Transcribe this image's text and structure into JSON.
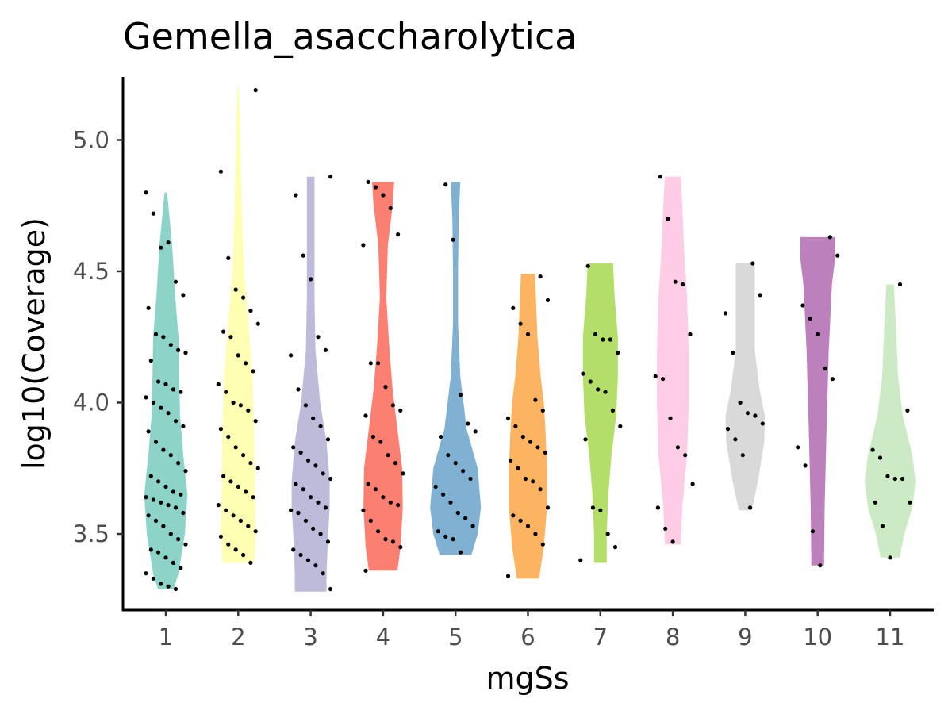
{
  "chart_data": {
    "type": "violin",
    "title": "Gemella_asaccharolytica",
    "xlabel": "mgSs",
    "ylabel": "log10(Coverage)",
    "categories": [
      "1",
      "2",
      "3",
      "4",
      "5",
      "6",
      "7",
      "8",
      "9",
      "10",
      "11"
    ],
    "ylim": [
      3.21,
      5.24
    ],
    "yticks": [
      "3.5",
      "4.0",
      "4.5",
      "5.0"
    ],
    "grid": false,
    "legend": "none",
    "colors": [
      "#8dd3c7",
      "#ffffb3",
      "#bebada",
      "#fb8072",
      "#80b1d3",
      "#fdb462",
      "#b3de69",
      "#fccde5",
      "#d9d9d9",
      "#bc80bd",
      "#ccebc5"
    ],
    "violins": [
      {
        "category": "1",
        "min": 3.29,
        "max": 4.8,
        "profile": [
          [
            3.29,
            0.25
          ],
          [
            3.35,
            0.4
          ],
          [
            3.5,
            0.6
          ],
          [
            3.65,
            0.68
          ],
          [
            3.8,
            0.55
          ],
          [
            3.95,
            0.45
          ],
          [
            4.1,
            0.42
          ],
          [
            4.25,
            0.4
          ],
          [
            4.4,
            0.3
          ],
          [
            4.6,
            0.2
          ],
          [
            4.8,
            0.04
          ]
        ]
      },
      {
        "category": "2",
        "min": 3.39,
        "max": 5.2,
        "profile": [
          [
            3.39,
            0.5
          ],
          [
            3.5,
            0.55
          ],
          [
            3.7,
            0.52
          ],
          [
            3.9,
            0.5
          ],
          [
            4.1,
            0.45
          ],
          [
            4.3,
            0.32
          ],
          [
            4.5,
            0.18
          ],
          [
            4.7,
            0.12
          ],
          [
            4.9,
            0.08
          ],
          [
            5.1,
            0.05
          ],
          [
            5.2,
            0.02
          ]
        ]
      },
      {
        "category": "3",
        "min": 3.28,
        "max": 4.86,
        "profile": [
          [
            3.28,
            0.5
          ],
          [
            3.35,
            0.5
          ],
          [
            3.5,
            0.55
          ],
          [
            3.6,
            0.6
          ],
          [
            3.7,
            0.6
          ],
          [
            3.85,
            0.5
          ],
          [
            4.0,
            0.3
          ],
          [
            4.2,
            0.15
          ],
          [
            4.4,
            0.12
          ],
          [
            4.6,
            0.12
          ],
          [
            4.86,
            0.12
          ]
        ]
      },
      {
        "category": "4",
        "min": 3.36,
        "max": 4.84,
        "profile": [
          [
            3.36,
            0.45
          ],
          [
            3.45,
            0.55
          ],
          [
            3.6,
            0.62
          ],
          [
            3.75,
            0.6
          ],
          [
            3.9,
            0.45
          ],
          [
            4.05,
            0.3
          ],
          [
            4.2,
            0.2
          ],
          [
            4.4,
            0.1
          ],
          [
            4.6,
            0.15
          ],
          [
            4.75,
            0.3
          ],
          [
            4.84,
            0.35
          ]
        ]
      },
      {
        "category": "5",
        "min": 3.42,
        "max": 4.84,
        "profile": [
          [
            3.42,
            0.5
          ],
          [
            3.5,
            0.7
          ],
          [
            3.6,
            0.8
          ],
          [
            3.75,
            0.7
          ],
          [
            3.9,
            0.35
          ],
          [
            4.1,
            0.15
          ],
          [
            4.3,
            0.08
          ],
          [
            4.5,
            0.08
          ],
          [
            4.7,
            0.1
          ],
          [
            4.84,
            0.15
          ]
        ]
      },
      {
        "category": "6",
        "min": 3.33,
        "max": 4.49,
        "profile": [
          [
            3.33,
            0.35
          ],
          [
            3.45,
            0.5
          ],
          [
            3.6,
            0.6
          ],
          [
            3.75,
            0.6
          ],
          [
            3.9,
            0.55
          ],
          [
            4.0,
            0.5
          ],
          [
            4.1,
            0.4
          ],
          [
            4.25,
            0.3
          ],
          [
            4.4,
            0.25
          ],
          [
            4.49,
            0.22
          ]
        ]
      },
      {
        "category": "7",
        "min": 3.39,
        "max": 4.53,
        "profile": [
          [
            3.39,
            0.2
          ],
          [
            3.5,
            0.2
          ],
          [
            3.65,
            0.25
          ],
          [
            3.8,
            0.35
          ],
          [
            3.95,
            0.5
          ],
          [
            4.1,
            0.55
          ],
          [
            4.25,
            0.55
          ],
          [
            4.4,
            0.45
          ],
          [
            4.53,
            0.4
          ]
        ]
      },
      {
        "category": "8",
        "min": 3.46,
        "max": 4.86,
        "profile": [
          [
            3.46,
            0.25
          ],
          [
            3.6,
            0.3
          ],
          [
            3.8,
            0.45
          ],
          [
            4.0,
            0.5
          ],
          [
            4.2,
            0.5
          ],
          [
            4.4,
            0.45
          ],
          [
            4.6,
            0.35
          ],
          [
            4.75,
            0.3
          ],
          [
            4.86,
            0.25
          ]
        ]
      },
      {
        "category": "9",
        "min": 3.59,
        "max": 4.53,
        "profile": [
          [
            3.59,
            0.2
          ],
          [
            3.7,
            0.4
          ],
          [
            3.85,
            0.6
          ],
          [
            3.95,
            0.62
          ],
          [
            4.05,
            0.45
          ],
          [
            4.2,
            0.3
          ],
          [
            4.35,
            0.3
          ],
          [
            4.45,
            0.3
          ],
          [
            4.53,
            0.3
          ]
        ]
      },
      {
        "category": "10",
        "min": 3.38,
        "max": 4.63,
        "profile": [
          [
            3.38,
            0.2
          ],
          [
            3.6,
            0.22
          ],
          [
            3.9,
            0.28
          ],
          [
            4.2,
            0.35
          ],
          [
            4.45,
            0.45
          ],
          [
            4.55,
            0.55
          ],
          [
            4.63,
            0.55
          ]
        ]
      },
      {
        "category": "11",
        "min": 3.41,
        "max": 4.45,
        "profile": [
          [
            3.41,
            0.3
          ],
          [
            3.5,
            0.45
          ],
          [
            3.6,
            0.7
          ],
          [
            3.7,
            0.8
          ],
          [
            3.8,
            0.7
          ],
          [
            3.95,
            0.4
          ],
          [
            4.1,
            0.25
          ],
          [
            4.3,
            0.18
          ],
          [
            4.45,
            0.12
          ]
        ]
      }
    ],
    "points": [
      [
        1,
        4.8
      ],
      [
        1,
        4.72
      ],
      [
        1,
        4.59
      ],
      [
        1,
        4.61
      ],
      [
        1,
        4.46
      ],
      [
        1,
        4.41
      ],
      [
        1,
        4.36
      ],
      [
        1,
        4.26
      ],
      [
        1,
        4.25
      ],
      [
        1,
        4.22
      ],
      [
        1,
        4.2
      ],
      [
        1,
        4.19
      ],
      [
        1,
        4.16
      ],
      [
        1,
        4.08
      ],
      [
        1,
        4.07
      ],
      [
        1,
        4.05
      ],
      [
        1,
        4.04
      ],
      [
        1,
        4.02
      ],
      [
        1,
        4.0
      ],
      [
        1,
        3.98
      ],
      [
        1,
        3.96
      ],
      [
        1,
        3.93
      ],
      [
        1,
        3.91
      ],
      [
        1,
        3.89
      ],
      [
        1,
        3.85
      ],
      [
        1,
        3.82
      ],
      [
        1,
        3.8
      ],
      [
        1,
        3.77
      ],
      [
        1,
        3.74
      ],
      [
        1,
        3.72
      ],
      [
        1,
        3.7
      ],
      [
        1,
        3.68
      ],
      [
        1,
        3.66
      ],
      [
        1,
        3.65
      ],
      [
        1,
        3.64
      ],
      [
        1,
        3.63
      ],
      [
        1,
        3.62
      ],
      [
        1,
        3.61
      ],
      [
        1,
        3.6
      ],
      [
        1,
        3.58
      ],
      [
        1,
        3.57
      ],
      [
        1,
        3.55
      ],
      [
        1,
        3.53
      ],
      [
        1,
        3.5
      ],
      [
        1,
        3.48
      ],
      [
        1,
        3.46
      ],
      [
        1,
        3.44
      ],
      [
        1,
        3.43
      ],
      [
        1,
        3.41
      ],
      [
        1,
        3.39
      ],
      [
        1,
        3.37
      ],
      [
        1,
        3.35
      ],
      [
        1,
        3.33
      ],
      [
        1,
        3.31
      ],
      [
        1,
        3.3
      ],
      [
        1,
        3.29
      ],
      [
        2,
        5.19
      ],
      [
        2,
        4.88
      ],
      [
        2,
        4.55
      ],
      [
        2,
        4.43
      ],
      [
        2,
        4.4
      ],
      [
        2,
        4.35
      ],
      [
        2,
        4.3
      ],
      [
        2,
        4.27
      ],
      [
        2,
        4.25
      ],
      [
        2,
        4.18
      ],
      [
        2,
        4.15
      ],
      [
        2,
        4.12
      ],
      [
        2,
        4.07
      ],
      [
        2,
        4.04
      ],
      [
        2,
        4.0
      ],
      [
        2,
        3.99
      ],
      [
        2,
        3.97
      ],
      [
        2,
        3.93
      ],
      [
        2,
        3.9
      ],
      [
        2,
        3.87
      ],
      [
        2,
        3.83
      ],
      [
        2,
        3.8
      ],
      [
        2,
        3.77
      ],
      [
        2,
        3.75
      ],
      [
        2,
        3.72
      ],
      [
        2,
        3.7
      ],
      [
        2,
        3.68
      ],
      [
        2,
        3.66
      ],
      [
        2,
        3.64
      ],
      [
        2,
        3.61
      ],
      [
        2,
        3.59
      ],
      [
        2,
        3.57
      ],
      [
        2,
        3.55
      ],
      [
        2,
        3.53
      ],
      [
        2,
        3.51
      ],
      [
        2,
        3.49
      ],
      [
        2,
        3.46
      ],
      [
        2,
        3.44
      ],
      [
        2,
        3.42
      ],
      [
        2,
        3.39
      ],
      [
        3,
        4.86
      ],
      [
        3,
        4.79
      ],
      [
        3,
        4.56
      ],
      [
        3,
        4.47
      ],
      [
        3,
        4.25
      ],
      [
        3,
        4.2
      ],
      [
        3,
        4.18
      ],
      [
        3,
        4.05
      ],
      [
        3,
        3.99
      ],
      [
        3,
        3.94
      ],
      [
        3,
        3.91
      ],
      [
        3,
        3.86
      ],
      [
        3,
        3.83
      ],
      [
        3,
        3.81
      ],
      [
        3,
        3.78
      ],
      [
        3,
        3.76
      ],
      [
        3,
        3.73
      ],
      [
        3,
        3.71
      ],
      [
        3,
        3.69
      ],
      [
        3,
        3.67
      ],
      [
        3,
        3.64
      ],
      [
        3,
        3.62
      ],
      [
        3,
        3.6
      ],
      [
        3,
        3.59
      ],
      [
        3,
        3.58
      ],
      [
        3,
        3.55
      ],
      [
        3,
        3.52
      ],
      [
        3,
        3.5
      ],
      [
        3,
        3.47
      ],
      [
        3,
        3.44
      ],
      [
        3,
        3.42
      ],
      [
        3,
        3.4
      ],
      [
        3,
        3.38
      ],
      [
        3,
        3.35
      ],
      [
        3,
        3.29
      ],
      [
        4,
        4.84
      ],
      [
        4,
        4.82
      ],
      [
        4,
        4.79
      ],
      [
        4,
        4.74
      ],
      [
        4,
        4.64
      ],
      [
        4,
        4.6
      ],
      [
        4,
        4.15
      ],
      [
        4,
        4.15
      ],
      [
        4,
        4.06
      ],
      [
        4,
        3.99
      ],
      [
        4,
        3.97
      ],
      [
        4,
        3.95
      ],
      [
        4,
        3.87
      ],
      [
        4,
        3.85
      ],
      [
        4,
        3.8
      ],
      [
        4,
        3.77
      ],
      [
        4,
        3.73
      ],
      [
        4,
        3.69
      ],
      [
        4,
        3.67
      ],
      [
        4,
        3.64
      ],
      [
        4,
        3.62
      ],
      [
        4,
        3.61
      ],
      [
        4,
        3.59
      ],
      [
        4,
        3.55
      ],
      [
        4,
        3.51
      ],
      [
        4,
        3.48
      ],
      [
        4,
        3.47
      ],
      [
        4,
        3.45
      ],
      [
        4,
        3.36
      ],
      [
        5,
        4.83
      ],
      [
        5,
        4.62
      ],
      [
        5,
        4.03
      ],
      [
        5,
        3.92
      ],
      [
        5,
        3.89
      ],
      [
        5,
        3.87
      ],
      [
        5,
        3.8
      ],
      [
        5,
        3.77
      ],
      [
        5,
        3.74
      ],
      [
        5,
        3.71
      ],
      [
        5,
        3.68
      ],
      [
        5,
        3.65
      ],
      [
        5,
        3.62
      ],
      [
        5,
        3.58
      ],
      [
        5,
        3.56
      ],
      [
        5,
        3.53
      ],
      [
        5,
        3.51
      ],
      [
        5,
        3.49
      ],
      [
        5,
        3.48
      ],
      [
        5,
        3.43
      ],
      [
        6,
        4.48
      ],
      [
        6,
        4.39
      ],
      [
        6,
        4.36
      ],
      [
        6,
        4.3
      ],
      [
        6,
        4.26
      ],
      [
        6,
        4.01
      ],
      [
        6,
        3.97
      ],
      [
        6,
        3.94
      ],
      [
        6,
        3.91
      ],
      [
        6,
        3.87
      ],
      [
        6,
        3.85
      ],
      [
        6,
        3.83
      ],
      [
        6,
        3.81
      ],
      [
        6,
        3.78
      ],
      [
        6,
        3.75
      ],
      [
        6,
        3.71
      ],
      [
        6,
        3.7
      ],
      [
        6,
        3.67
      ],
      [
        6,
        3.6
      ],
      [
        6,
        3.57
      ],
      [
        6,
        3.55
      ],
      [
        6,
        3.53
      ],
      [
        6,
        3.5
      ],
      [
        6,
        3.46
      ],
      [
        6,
        3.34
      ],
      [
        7,
        4.52
      ],
      [
        7,
        4.26
      ],
      [
        7,
        4.24
      ],
      [
        7,
        4.24
      ],
      [
        7,
        4.19
      ],
      [
        7,
        4.11
      ],
      [
        7,
        4.08
      ],
      [
        7,
        4.05
      ],
      [
        7,
        4.04
      ],
      [
        7,
        3.97
      ],
      [
        7,
        3.91
      ],
      [
        7,
        3.86
      ],
      [
        7,
        3.6
      ],
      [
        7,
        3.59
      ],
      [
        7,
        3.5
      ],
      [
        7,
        3.45
      ],
      [
        7,
        3.4
      ],
      [
        8,
        4.86
      ],
      [
        8,
        4.7
      ],
      [
        8,
        4.46
      ],
      [
        8,
        4.45
      ],
      [
        8,
        4.26
      ],
      [
        8,
        4.1
      ],
      [
        8,
        4.09
      ],
      [
        8,
        3.94
      ],
      [
        8,
        3.83
      ],
      [
        8,
        3.8
      ],
      [
        8,
        3.69
      ],
      [
        8,
        3.6
      ],
      [
        8,
        3.52
      ],
      [
        8,
        3.47
      ],
      [
        9,
        4.53
      ],
      [
        9,
        4.41
      ],
      [
        9,
        4.34
      ],
      [
        9,
        4.19
      ],
      [
        9,
        4.0
      ],
      [
        9,
        3.96
      ],
      [
        9,
        3.95
      ],
      [
        9,
        3.92
      ],
      [
        9,
        3.9
      ],
      [
        9,
        3.86
      ],
      [
        9,
        3.8
      ],
      [
        9,
        3.6
      ],
      [
        10,
        4.63
      ],
      [
        10,
        4.56
      ],
      [
        10,
        4.37
      ],
      [
        10,
        4.32
      ],
      [
        10,
        4.26
      ],
      [
        10,
        4.13
      ],
      [
        10,
        4.09
      ],
      [
        10,
        3.83
      ],
      [
        10,
        3.76
      ],
      [
        10,
        3.51
      ],
      [
        10,
        3.38
      ],
      [
        11,
        4.45
      ],
      [
        11,
        3.97
      ],
      [
        11,
        3.82
      ],
      [
        11,
        3.79
      ],
      [
        11,
        3.72
      ],
      [
        11,
        3.71
      ],
      [
        11,
        3.71
      ],
      [
        11,
        3.62
      ],
      [
        11,
        3.62
      ],
      [
        11,
        3.53
      ],
      [
        11,
        3.41
      ]
    ]
  }
}
